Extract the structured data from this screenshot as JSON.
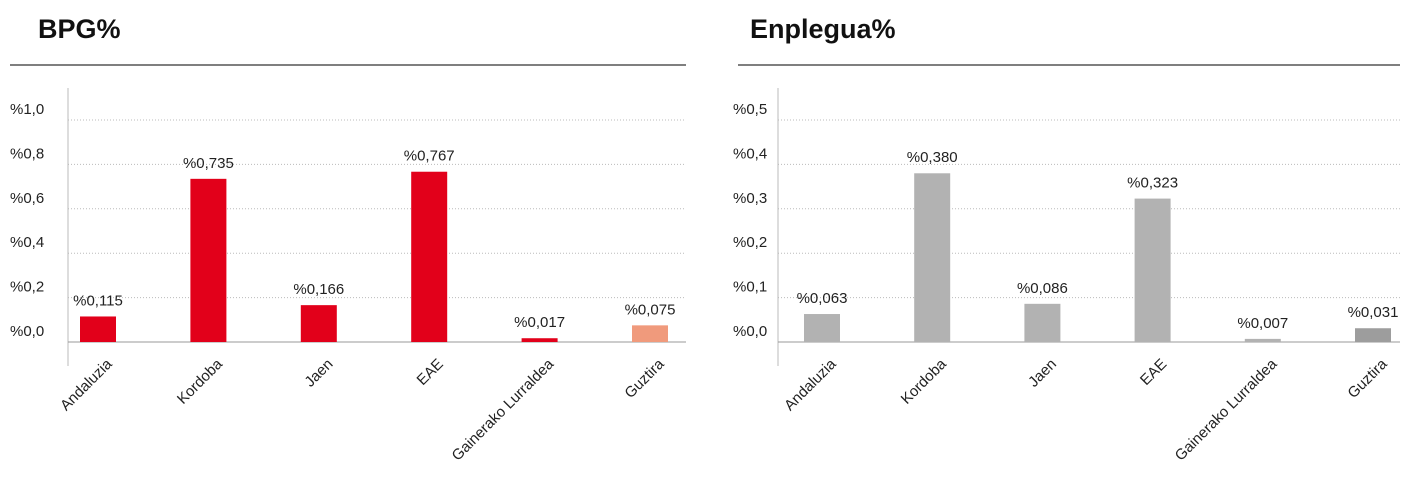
{
  "chart_data": [
    {
      "type": "bar",
      "title": "BPG%",
      "categories": [
        "Andaluzia",
        "Kordoba",
        "Jaen",
        "EAE",
        "Gainerako Lurraldea",
        "Guztira"
      ],
      "values": [
        0.115,
        0.735,
        0.166,
        0.767,
        0.017,
        0.075
      ],
      "value_labels": [
        "%0,115",
        "%0,735",
        "%0,166",
        "%0,767",
        "%0,017",
        "%0,075"
      ],
      "colors": [
        "#e2001a",
        "#e2001a",
        "#e2001a",
        "#e2001a",
        "#e2001a",
        "#f09a7c"
      ],
      "ylim": [
        0,
        1.0
      ],
      "yticks": [
        {
          "value": 0,
          "label": "%0,0"
        },
        {
          "value": 0.2,
          "label": "%0,2"
        },
        {
          "value": 0.4,
          "label": "%0,4"
        },
        {
          "value": 0.6,
          "label": "%0,6"
        },
        {
          "value": 0.8,
          "label": "%0,8"
        },
        {
          "value": 1.0,
          "label": "%1,0"
        }
      ],
      "grid": true
    },
    {
      "type": "bar",
      "title": "Enplegua%",
      "categories": [
        "Andaluzia",
        "Kordoba",
        "Jaen",
        "EAE",
        "Gainerako Lurraldea",
        "Guztira"
      ],
      "values": [
        0.063,
        0.38,
        0.086,
        0.323,
        0.007,
        0.031
      ],
      "value_labels": [
        "%0,063",
        "%0,380",
        "%0,086",
        "%0,323",
        "%0,007",
        "%0,031"
      ],
      "colors": [
        "#b2b2b2",
        "#b2b2b2",
        "#b2b2b2",
        "#b2b2b2",
        "#b2b2b2",
        "#9d9d9d"
      ],
      "ylim": [
        0,
        0.5
      ],
      "yticks": [
        {
          "value": 0,
          "label": "%0,0"
        },
        {
          "value": 0.1,
          "label": "%0,1"
        },
        {
          "value": 0.2,
          "label": "%0,2"
        },
        {
          "value": 0.3,
          "label": "%0,3"
        },
        {
          "value": 0.4,
          "label": "%0,4"
        },
        {
          "value": 0.5,
          "label": "%0,5"
        }
      ],
      "grid": true
    }
  ]
}
